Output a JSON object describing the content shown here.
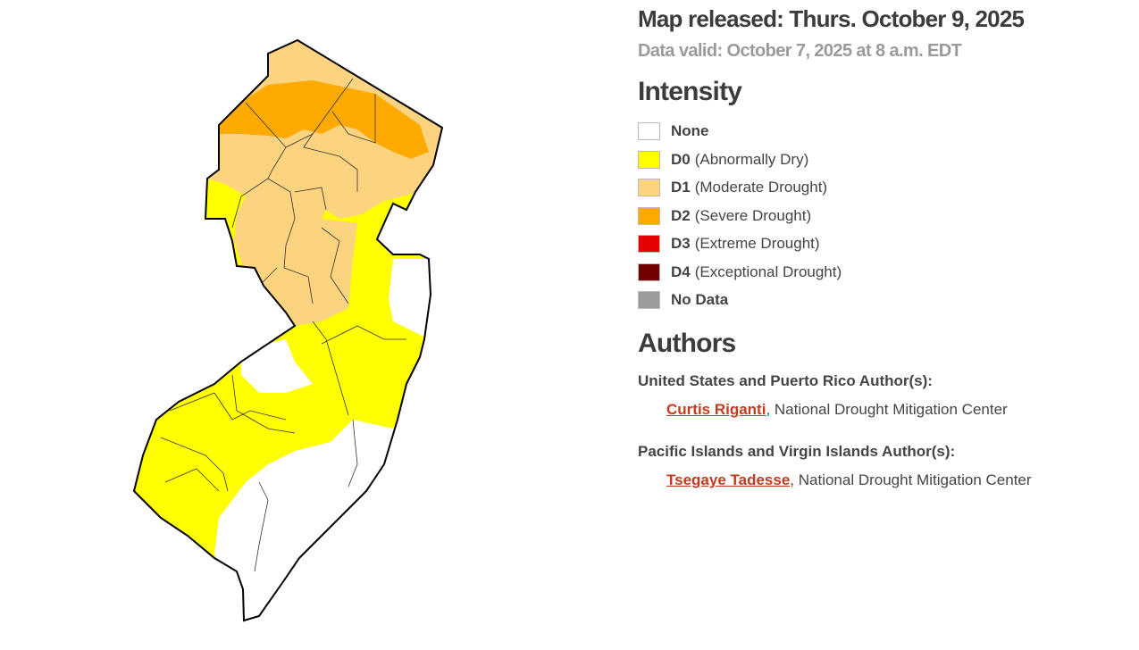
{
  "header": {
    "title": "Map released: Thurs. October 9, 2025",
    "subtitle": "Data valid: October 7, 2025 at 8 a.m. EDT"
  },
  "legend": {
    "title": "Intensity",
    "items": [
      {
        "code": "None",
        "color": "#ffffff"
      },
      {
        "code": "D0",
        "description": "(Abnormally Dry)",
        "color": "#ffff00"
      },
      {
        "code": "D1",
        "description": "(Moderate Drought)",
        "color": "#fcd37f"
      },
      {
        "code": "D2",
        "description": "(Severe Drought)",
        "color": "#ffaa00"
      },
      {
        "code": "D3",
        "description": "(Extreme Drought)",
        "color": "#e60000"
      },
      {
        "code": "D4",
        "description": "(Exceptional Drought)",
        "color": "#730000"
      },
      {
        "code": "No Data",
        "color": "#9b9b9b"
      }
    ]
  },
  "authors": {
    "title": "Authors",
    "groups": [
      {
        "heading": "United States and Puerto Rico Author(s):",
        "name": "Curtis Riganti",
        "affiliation": ", National Drought Mitigation Center"
      },
      {
        "heading": "Pacific Islands and Virgin Islands Author(s):",
        "name": "Tsegaye Tadesse",
        "affiliation": ", National Drought Mitigation Center"
      }
    ]
  }
}
